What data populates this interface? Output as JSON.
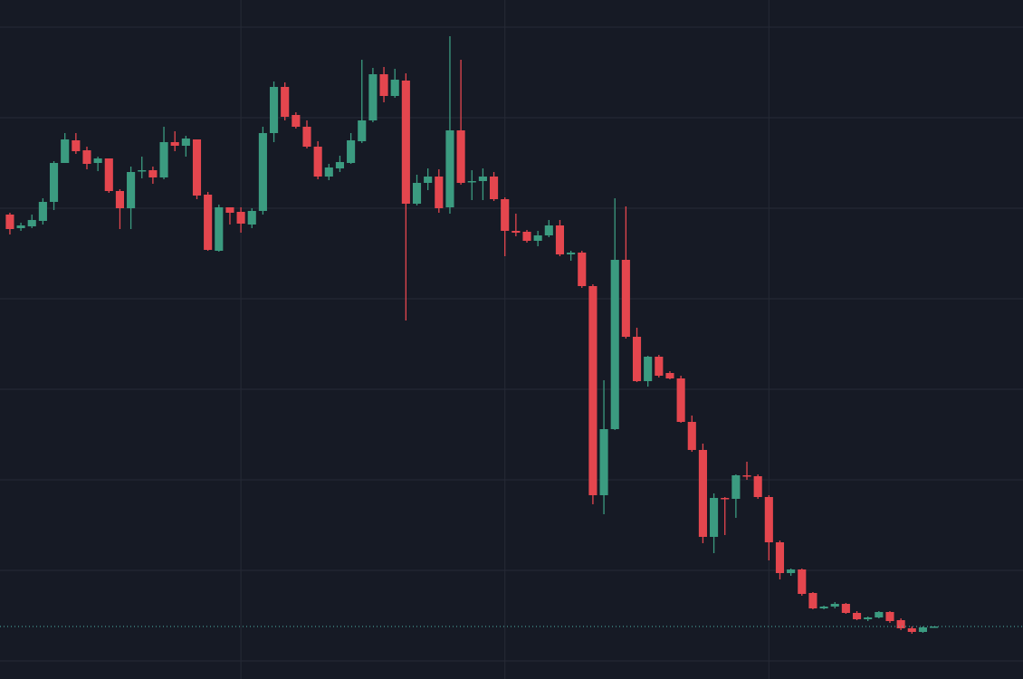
{
  "chart_data": {
    "type": "candlestick",
    "x": [
      0,
      1,
      2,
      3,
      4,
      5,
      6,
      7,
      8,
      9,
      10,
      11,
      12,
      13,
      14,
      15,
      16,
      17,
      18,
      19,
      20,
      21,
      22,
      23,
      24,
      25,
      26,
      27,
      28,
      29,
      30,
      31,
      32,
      33,
      34,
      35,
      36,
      37,
      38,
      39,
      40,
      41,
      42,
      43,
      44,
      45,
      46,
      47,
      48,
      49,
      50,
      51,
      52,
      53,
      54,
      55,
      56,
      57,
      58,
      59,
      60,
      61,
      62,
      63,
      64,
      65,
      66,
      67,
      68,
      69,
      70,
      71,
      72,
      73,
      74,
      75,
      76,
      77,
      78,
      79,
      80,
      81,
      82,
      83,
      84
    ],
    "open": [
      513,
      498,
      500,
      506,
      527,
      570,
      595,
      584,
      570,
      575,
      539,
      520,
      561,
      562,
      554,
      593,
      589,
      596,
      535,
      473,
      521,
      516,
      502,
      517,
      603,
      654,
      623,
      610,
      588,
      555,
      564,
      570,
      594,
      617,
      668,
      644,
      661,
      525,
      548,
      555,
      521,
      606,
      549,
      550,
      555,
      530,
      495,
      494,
      484,
      490,
      501,
      469,
      471,
      434,
      203,
      276,
      463,
      378,
      329,
      356,
      338,
      332,
      284,
      253,
      157,
      200,
      199,
      225,
      224,
      201,
      151,
      117,
      121,
      95,
      78,
      80,
      83,
      73,
      66,
      68,
      74,
      65,
      56,
      52,
      57
    ],
    "high": [
      515,
      504,
      513,
      531,
      572,
      603,
      603,
      588,
      577,
      575,
      541,
      566,
      577,
      566,
      610,
      605,
      600,
      596,
      538,
      524,
      521,
      521,
      520,
      610,
      660,
      659,
      626,
      617,
      594,
      569,
      578,
      603,
      684,
      675,
      676,
      674,
      669,
      557,
      564,
      563,
      710,
      684,
      562,
      564,
      560,
      532,
      514,
      496,
      495,
      507,
      507,
      473,
      473,
      436,
      330,
      531,
      522,
      388,
      357,
      358,
      340,
      335,
      291,
      260,
      205,
      201,
      226,
      240,
      226,
      203,
      153,
      122,
      122,
      96,
      81,
      85,
      84,
      75,
      69,
      75,
      75,
      67,
      58,
      58,
      58
    ],
    "low": [
      491,
      495,
      498,
      502,
      518,
      570,
      580,
      563,
      561,
      537,
      497,
      497,
      553,
      547,
      552,
      583,
      577,
      530,
      473,
      472,
      502,
      493,
      498,
      513,
      593,
      617,
      608,
      586,
      552,
      551,
      560,
      569,
      592,
      615,
      637,
      642,
      396,
      523,
      540,
      515,
      514,
      546,
      529,
      529,
      528,
      467,
      489,
      482,
      478,
      488,
      467,
      462,
      432,
      193,
      182,
      275,
      376,
      328,
      323,
      333,
      331,
      283,
      251,
      150,
      139,
      159,
      178,
      220,
      199,
      131,
      110,
      114,
      92,
      77,
      77,
      78,
      72,
      65,
      64,
      67,
      62,
      54,
      50,
      51,
      57
    ],
    "close": [
      497,
      501,
      507,
      527,
      570,
      596,
      583,
      569,
      575,
      539,
      520,
      560,
      562,
      554,
      593,
      589,
      597,
      534,
      474,
      521,
      515,
      503,
      517,
      603,
      654,
      621,
      610,
      588,
      555,
      565,
      571,
      595,
      617,
      668,
      644,
      662,
      525,
      548,
      555,
      520,
      606,
      548,
      550,
      555,
      530,
      495,
      493,
      484,
      490,
      501,
      469,
      471,
      434,
      203,
      276,
      463,
      378,
      329,
      356,
      335,
      332,
      284,
      253,
      157,
      200,
      199,
      225,
      224,
      201,
      151,
      117,
      121,
      94,
      78,
      80,
      83,
      73,
      66,
      68,
      74,
      64,
      56,
      52,
      57,
      58
    ],
    "up_color": "#3b9b80",
    "down_color": "#e4464e",
    "xlim": [
      -0.9,
      92.1
    ],
    "ylim": [
      0,
      750
    ],
    "xticks": [
      21,
      45,
      69
    ],
    "yticks": [
      20,
      120,
      220,
      320,
      420,
      520,
      620,
      720
    ],
    "grid": true,
    "grid_color": "#262a36",
    "last_price": 58,
    "last_price_color": "#4db6ac"
  }
}
